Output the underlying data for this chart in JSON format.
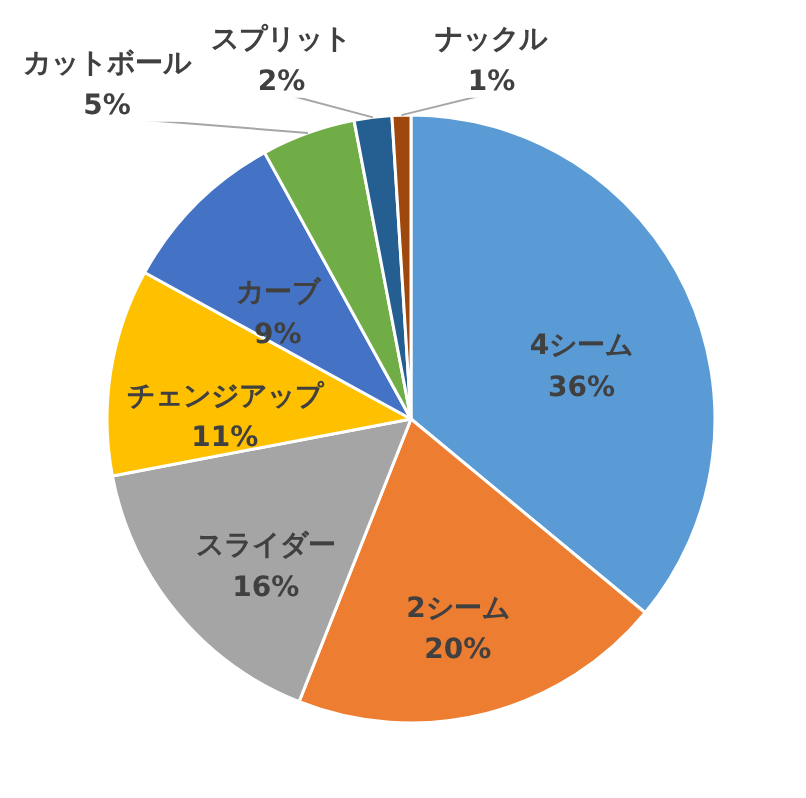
{
  "chart_data": {
    "type": "pie",
    "categories": [
      "4シーム",
      "2シーム",
      "スライダー",
      "チェンジアップ",
      "カーブ",
      "カットボール",
      "スプリット",
      "ナックル"
    ],
    "values": [
      36,
      20,
      16,
      11,
      9,
      5,
      2,
      1
    ],
    "colors": [
      "#5b9bd5",
      "#ed7d31",
      "#a5a5a5",
      "#ffc000",
      "#4472c4",
      "#70ad47",
      "#255e91",
      "#9e480e"
    ],
    "value_labels": [
      "36%",
      "20%",
      "16%",
      "11%",
      "9%",
      "5%",
      "2%",
      "1%"
    ]
  }
}
